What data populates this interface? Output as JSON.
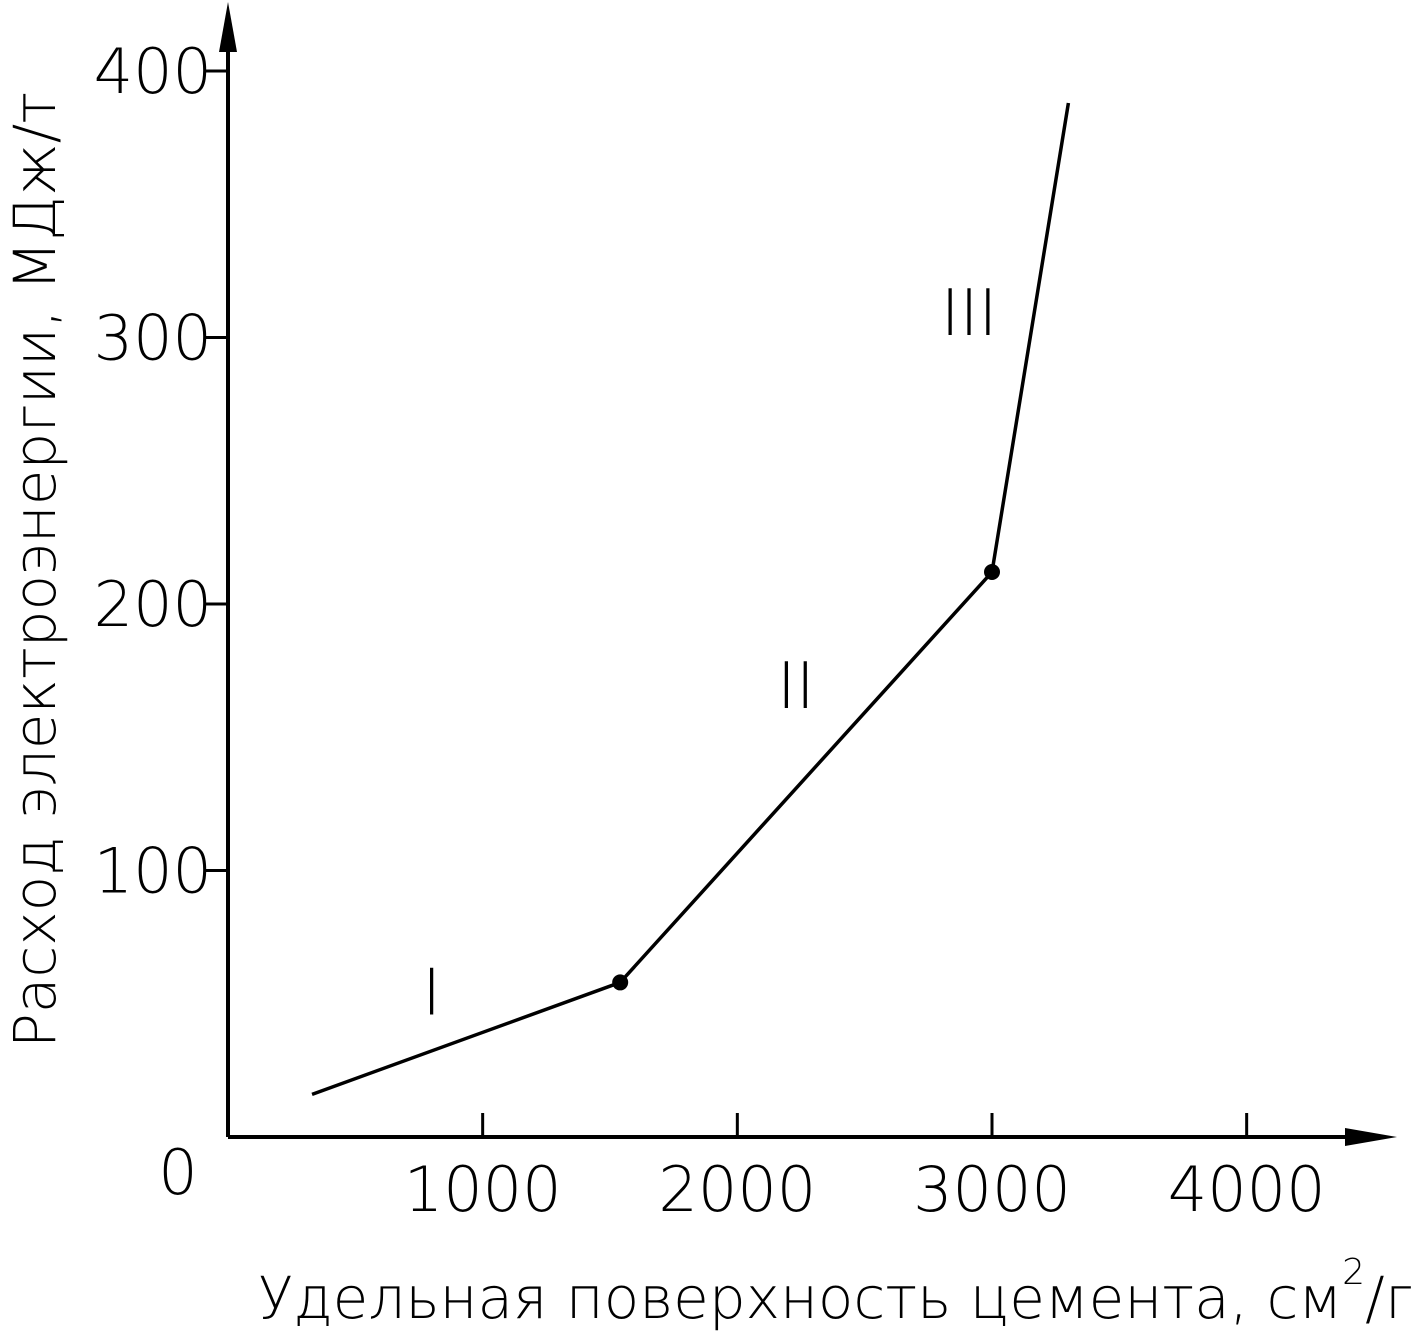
{
  "chart_data": {
    "type": "line",
    "xlabel": "Удельная поверхность цемента, см",
    "xlabel_sup": "2",
    "xlabel_tail": "/г",
    "ylabel": "Расход электроэнергии, МДж/т",
    "origin_label": "0",
    "xlim": [
      0,
      4500
    ],
    "ylim": [
      0,
      400
    ],
    "x_ticks": [
      {
        "value": 1000,
        "label": "1000"
      },
      {
        "value": 2000,
        "label": "2000"
      },
      {
        "value": 3000,
        "label": "3000"
      },
      {
        "value": 4000,
        "label": "4000"
      }
    ],
    "y_ticks": [
      {
        "value": 100,
        "label": "100"
      },
      {
        "value": 200,
        "label": "200"
      },
      {
        "value": 300,
        "label": "300"
      },
      {
        "value": 400,
        "label": "400"
      }
    ],
    "series": [
      {
        "points": [
          {
            "x": 330,
            "y": 16
          },
          {
            "x": 1540,
            "y": 58
          },
          {
            "x": 3000,
            "y": 212
          },
          {
            "x": 3300,
            "y": 388
          }
        ]
      }
    ],
    "markers": [
      {
        "x": 1540,
        "y": 58
      },
      {
        "x": 3000,
        "y": 212
      }
    ],
    "segment_labels": [
      {
        "text": "I",
        "x": 800,
        "y": 55
      },
      {
        "text": "II",
        "x": 2230,
        "y": 170
      },
      {
        "text": "III",
        "x": 2910,
        "y": 310
      }
    ],
    "grid": false,
    "legend": "none"
  }
}
